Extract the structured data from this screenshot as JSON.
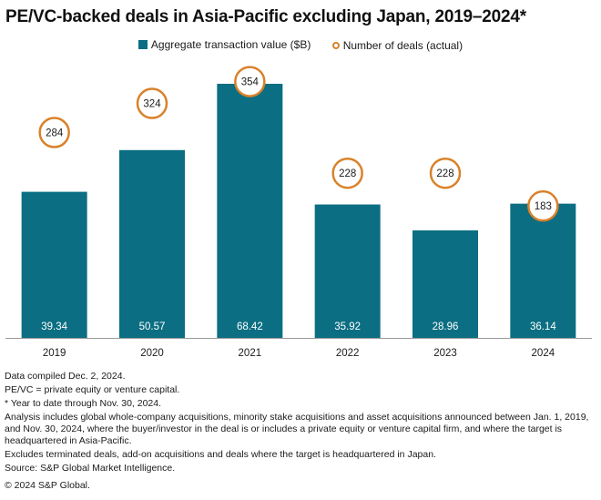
{
  "chart_data": {
    "type": "bar",
    "title": "PE/VC-backed deals in Asia-Pacific excluding Japan, 2019–2024*",
    "categories": [
      "2019",
      "2020",
      "2021",
      "2022",
      "2023",
      "2024"
    ],
    "series": [
      {
        "name": "Aggregate transaction value ($B)",
        "type": "bar",
        "values": [
          39.34,
          50.57,
          68.42,
          35.92,
          28.96,
          36.14
        ],
        "color": "#0b6e82"
      },
      {
        "name": "Number of deals (actual)",
        "type": "marker",
        "values": [
          284,
          324,
          354,
          228,
          228,
          183
        ],
        "color": "#d9822b"
      }
    ],
    "bar_label_color": "#ffffff",
    "axis_color": "#999999",
    "grid": false,
    "legend_position": "top-center"
  },
  "notes": [
    "Data compiled Dec. 2, 2024.",
    "PE/VC = private equity or venture capital.",
    "* Year to date through Nov. 30, 2024.",
    "Analysis includes global whole-company acquisitions, minority stake acquisitions and asset acquisitions announced between Jan. 1, 2019, and Nov. 30, 2024, where the buyer/investor in the deal is or includes a private equity or venture capital firm, and where the target is headquartered in Asia-Pacific.",
    "Excludes terminated deals, add-on acquisitions and deals where the target is headquartered in Japan.",
    "Source: S&P Global Market Intelligence."
  ],
  "copyright": "© 2024 S&P Global."
}
